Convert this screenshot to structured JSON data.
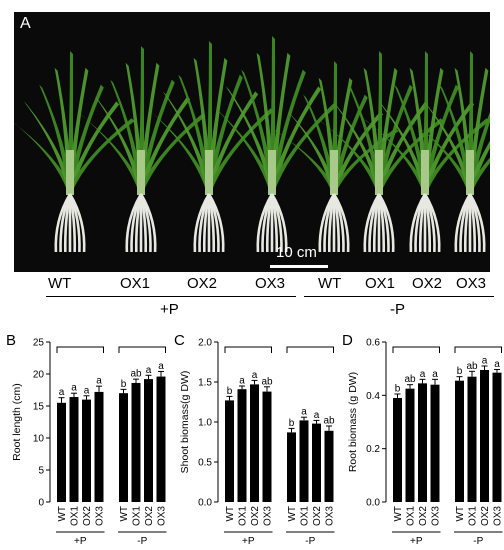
{
  "photo": {
    "panel_label": "A",
    "scale_bar_label": "10 cm",
    "genotypes": [
      "WT",
      "OX1",
      "OX2",
      "OX3",
      "WT",
      "OX1",
      "OX2",
      "OX3"
    ],
    "groups": [
      "+P",
      "-P"
    ]
  },
  "chart_data": [
    {
      "type": "bar",
      "panel_label": "B",
      "ylabel": "Root length (cm)",
      "ylim": [
        0,
        25
      ],
      "yticks": [
        "0",
        "5",
        "10",
        "15",
        "20",
        "25"
      ],
      "categories": [
        "WT",
        "OX1",
        "OX2",
        "OX3",
        "WT",
        "OX1",
        "OX2",
        "OX3"
      ],
      "groups": [
        "+P",
        "-P"
      ],
      "values": [
        15.5,
        16.4,
        16.0,
        17.2,
        17.0,
        18.6,
        19.2,
        19.6
      ],
      "errors": [
        0.8,
        0.6,
        0.6,
        0.9,
        0.6,
        0.6,
        0.6,
        0.8
      ],
      "significance": [
        "a",
        "a",
        "a",
        "a",
        "b",
        "ab",
        "a",
        "a"
      ]
    },
    {
      "type": "bar",
      "panel_label": "C",
      "ylabel": "Shoot biomass(g DW)",
      "ylim": [
        0,
        2.0
      ],
      "yticks": [
        "0.0",
        "0.5",
        "1.0",
        "1.5",
        "2.0"
      ],
      "categories": [
        "WT",
        "OX1",
        "OX2",
        "OX3",
        "WT",
        "OX1",
        "OX2",
        "OX3"
      ],
      "groups": [
        "+P",
        "-P"
      ],
      "values": [
        1.27,
        1.41,
        1.47,
        1.38,
        0.87,
        1.02,
        0.98,
        0.89
      ],
      "errors": [
        0.05,
        0.04,
        0.05,
        0.06,
        0.05,
        0.04,
        0.04,
        0.06
      ],
      "significance": [
        "b",
        "a",
        "a",
        "ab",
        "b",
        "a",
        "a",
        "ab"
      ]
    },
    {
      "type": "bar",
      "panel_label": "D",
      "ylabel": "Root biomass (g DW)",
      "ylim": [
        0,
        0.6
      ],
      "yticks": [
        "0.0",
        "0.2",
        "0.4",
        "0.6"
      ],
      "categories": [
        "WT",
        "OX1",
        "OX2",
        "OX3",
        "WT",
        "OX1",
        "OX2",
        "OX3"
      ],
      "groups": [
        "+P",
        "-P"
      ],
      "values": [
        0.39,
        0.425,
        0.445,
        0.44,
        0.455,
        0.47,
        0.495,
        0.485
      ],
      "errors": [
        0.015,
        0.015,
        0.015,
        0.02,
        0.015,
        0.02,
        0.015,
        0.012
      ],
      "significance": [
        "b",
        "ab",
        "a",
        "a",
        "b",
        "ab",
        "a",
        "a"
      ]
    }
  ],
  "colors": {
    "bar": "#000000",
    "photo_background": "#0a0a0a",
    "leaf": "#4f9a2e",
    "root": "#e8e8e2"
  }
}
